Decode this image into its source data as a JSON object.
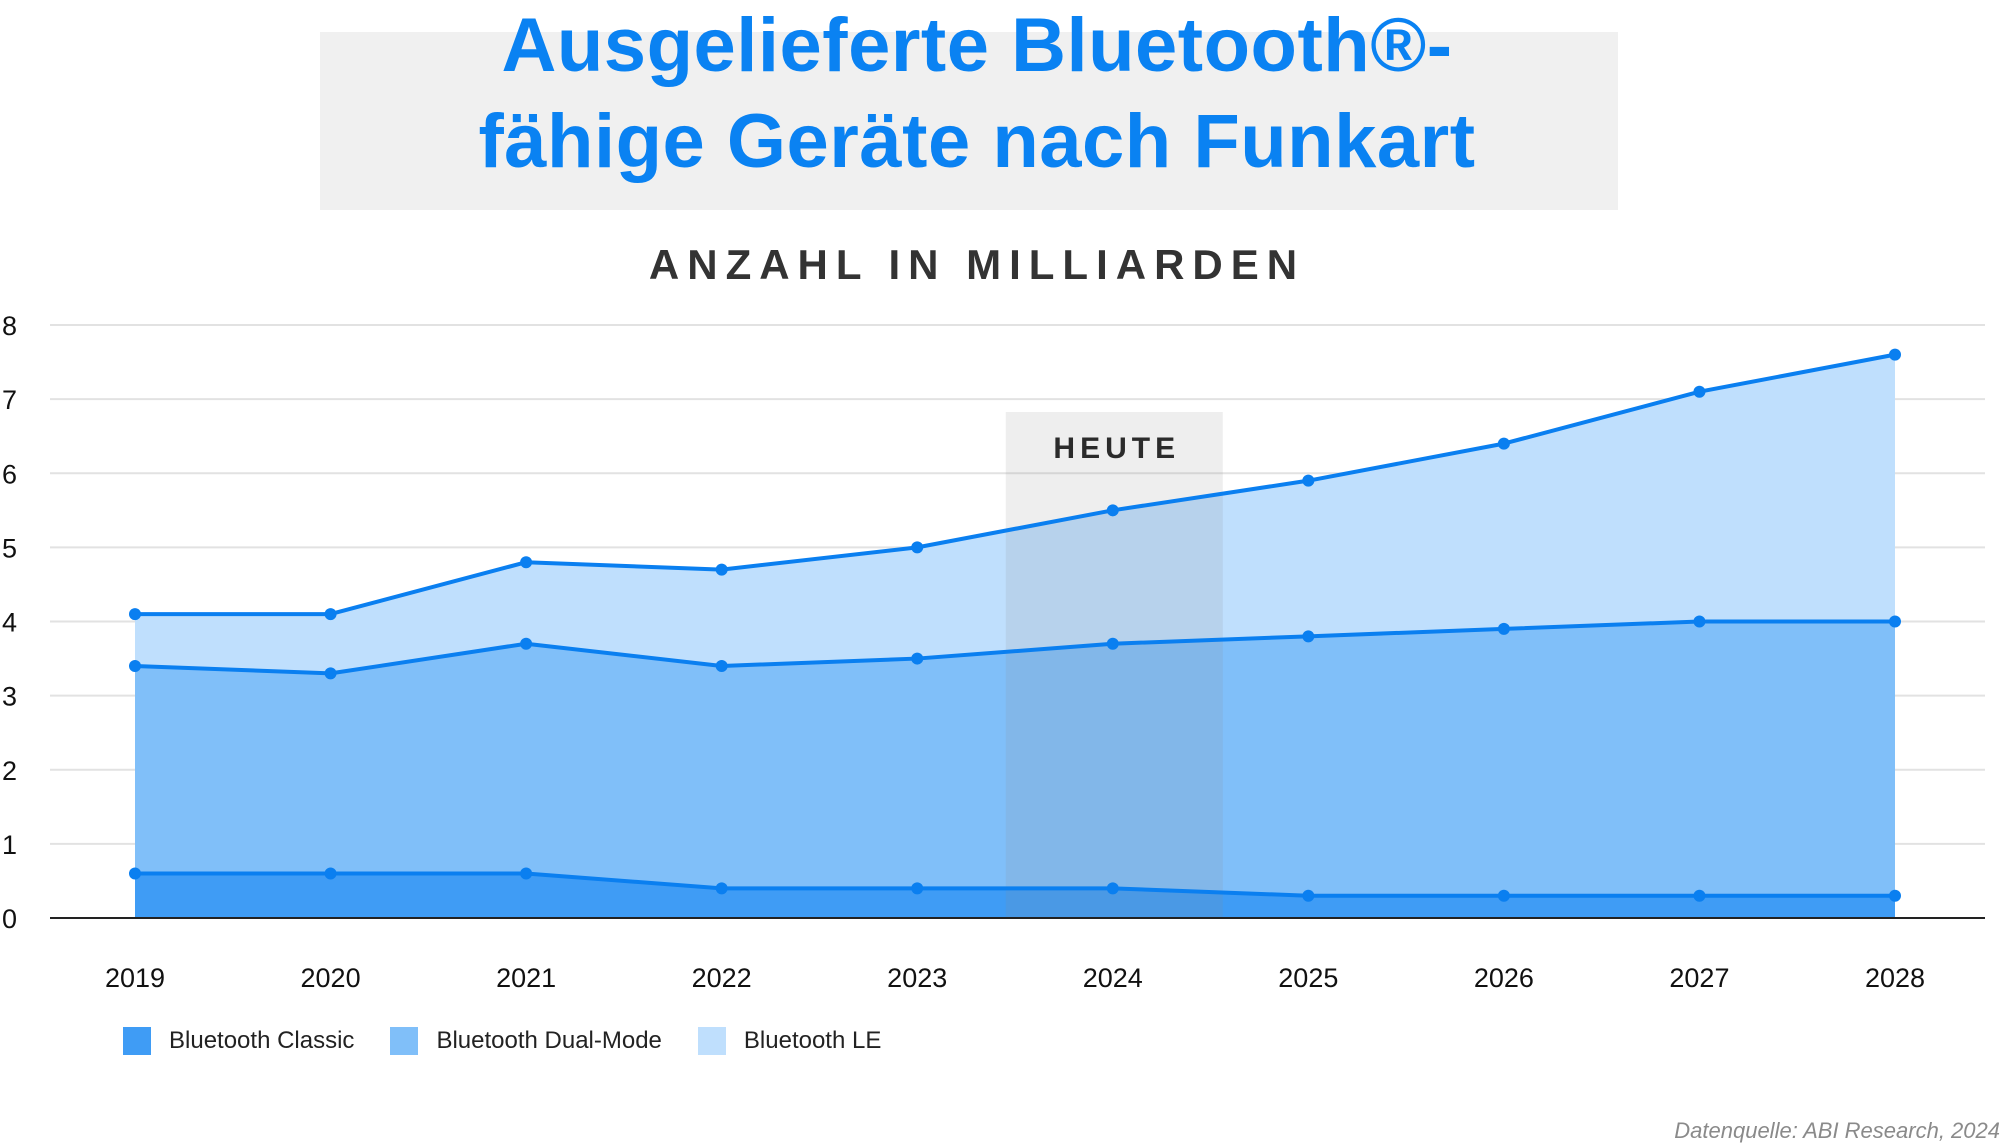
{
  "header": {
    "title_line1": "Ausgelieferte Bluetooth®-",
    "title_line2": "fähige Geräte nach Funkart",
    "subtitle": "ANZAHL IN MILLIARDEN"
  },
  "highlight": {
    "label": "HEUTE",
    "year": "2024"
  },
  "source": "Datenquelle: ABI Research, 2024",
  "colors": {
    "title": "#0a82f2",
    "line": "#0a7ff0",
    "classic_fill": "#3f9cf5",
    "dualmode_fill": "#80bff9",
    "le_fill": "#bfdffd",
    "highlight_band": "#8c8c8c",
    "grid": "#e2e2e2",
    "axis": "#222222"
  },
  "chart_data": {
    "type": "area",
    "stacked": true,
    "categories": [
      "2019",
      "2020",
      "2021",
      "2022",
      "2023",
      "2024",
      "2025",
      "2026",
      "2027",
      "2028"
    ],
    "ylim": [
      0,
      8
    ],
    "yticks": [
      "0",
      "1",
      "2",
      "3",
      "4",
      "5",
      "6",
      "7",
      "8"
    ],
    "grid": true,
    "legend_position": "bottom-left",
    "series": [
      {
        "name": "Bluetooth Classic",
        "values": [
          0.6,
          0.6,
          0.6,
          0.4,
          0.4,
          0.4,
          0.3,
          0.3,
          0.3,
          0.3
        ],
        "color": "#3f9cf5"
      },
      {
        "name": "Bluetooth Dual-Mode",
        "values": [
          2.8,
          2.7,
          3.1,
          3.0,
          3.1,
          3.3,
          3.5,
          3.6,
          3.7,
          3.7
        ],
        "color": "#80bff9"
      },
      {
        "name": "Bluetooth LE",
        "values": [
          0.7,
          0.8,
          1.1,
          1.3,
          1.5,
          1.8,
          2.1,
          2.5,
          3.1,
          3.6
        ],
        "color": "#bfdffd"
      }
    ]
  }
}
